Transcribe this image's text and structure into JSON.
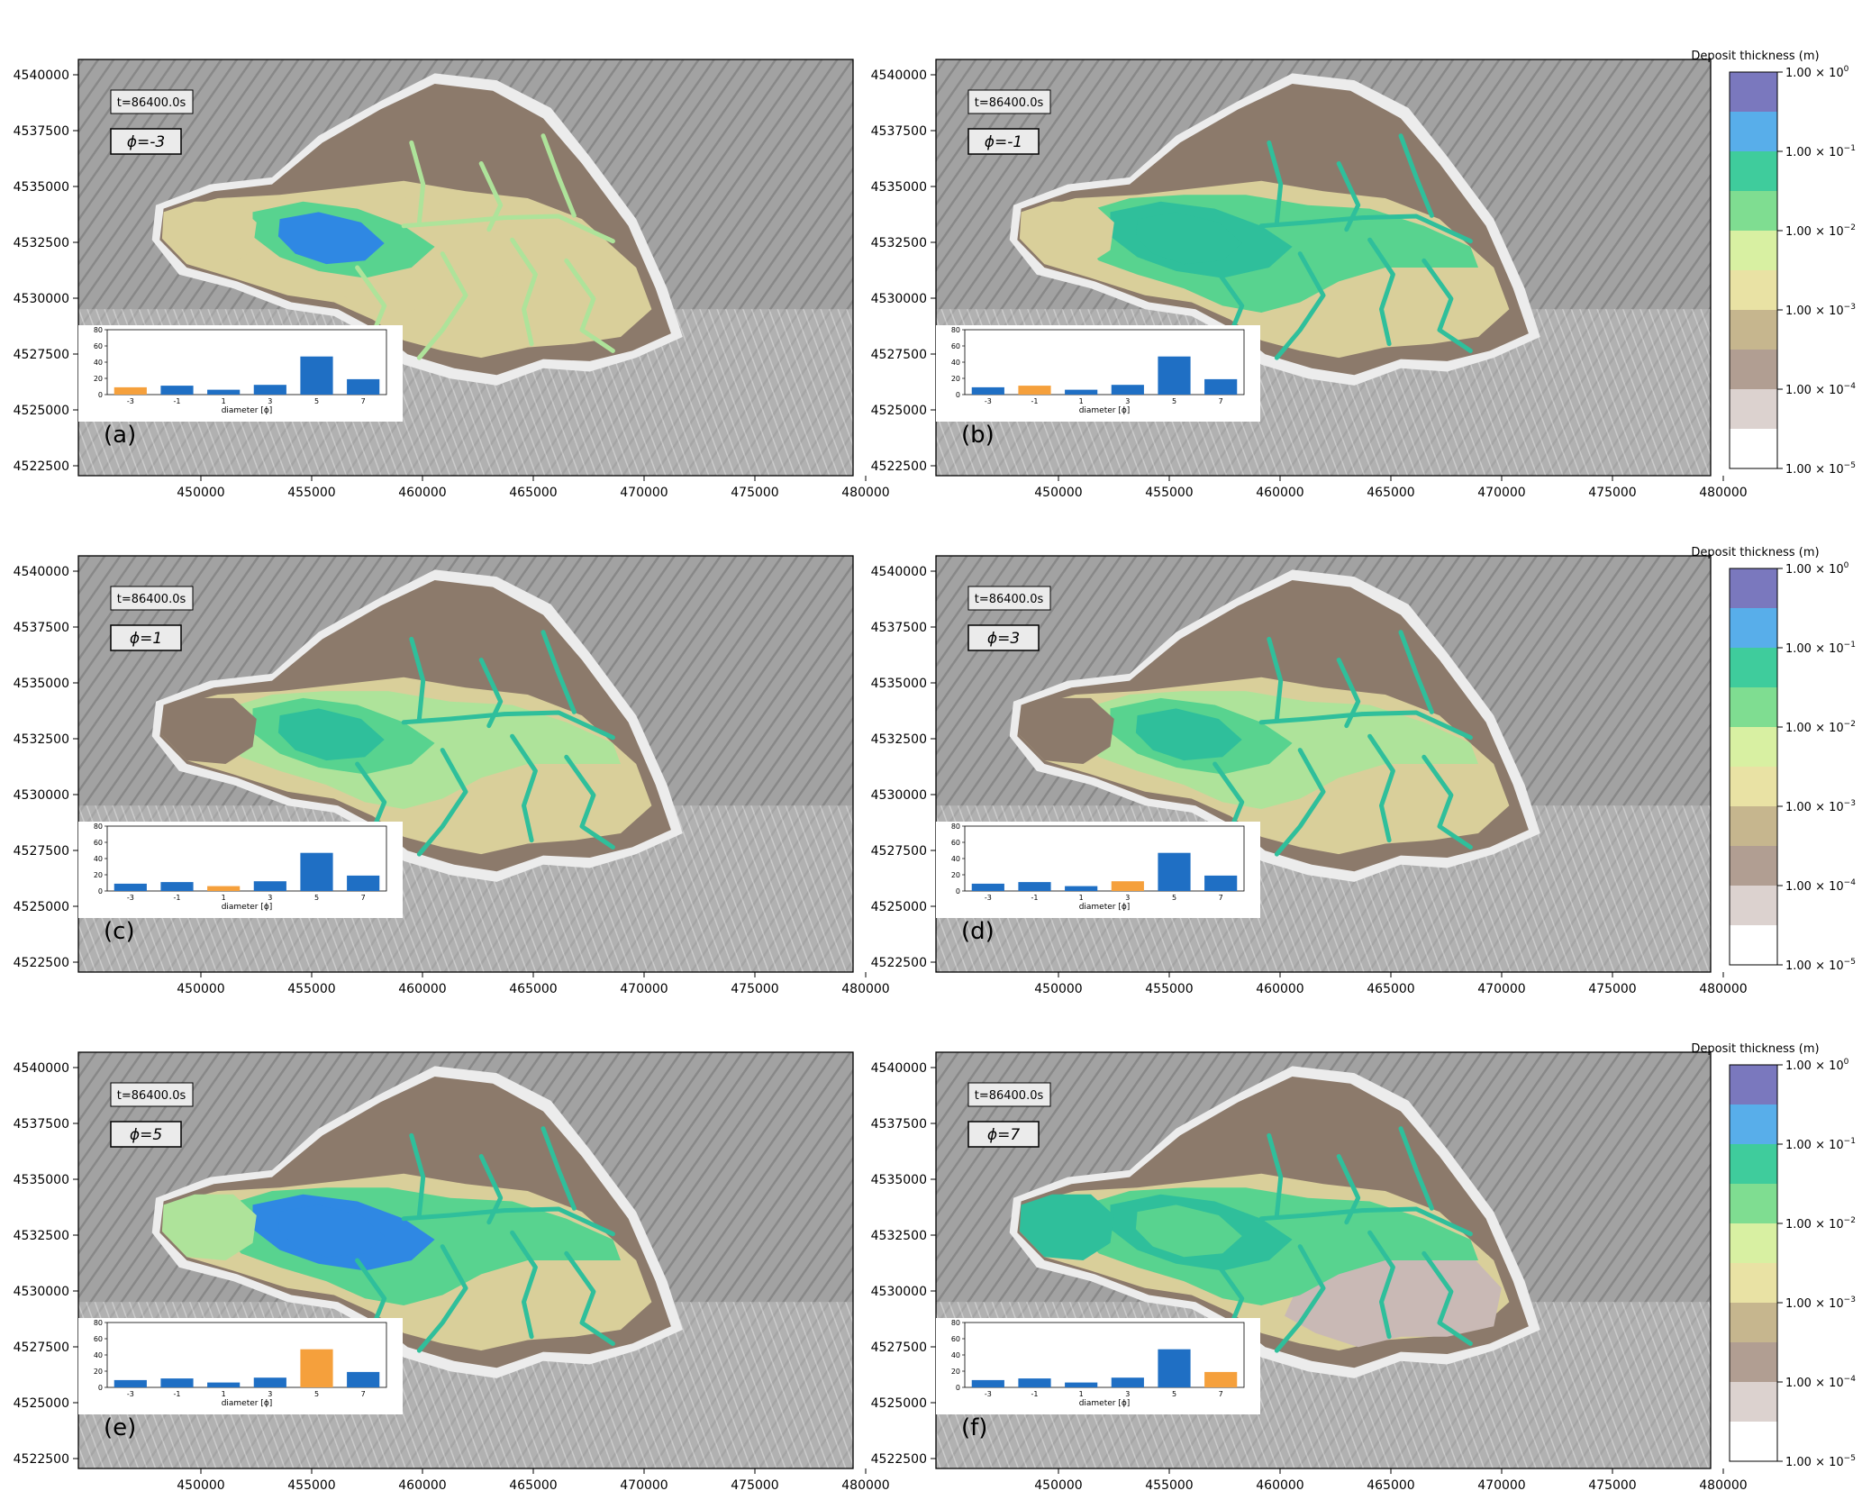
{
  "figure": {
    "y_ticks": [
      "4540000",
      "4537500",
      "4535000",
      "4532500",
      "4530000",
      "4527500",
      "4525000",
      "4522500"
    ],
    "x_ticks": [
      "450000",
      "455000",
      "460000",
      "465000",
      "470000",
      "475000",
      "480000"
    ],
    "colorbar": {
      "title": "Deposit thickness (m)",
      "ticks": [
        {
          "base": "1.00 × 10",
          "exp": "0"
        },
        {
          "base": "1.00 × 10",
          "exp": "−1"
        },
        {
          "base": "1.00 × 10",
          "exp": "−2"
        },
        {
          "base": "1.00 × 10",
          "exp": "−3"
        },
        {
          "base": "1.00 × 10",
          "exp": "−4"
        },
        {
          "base": "1.00 × 10",
          "exp": "−5"
        }
      ],
      "band_colors": [
        "#7a78be",
        "#58aeea",
        "#3fcc9c",
        "#7fdd91",
        "#d8f0a2",
        "#e9e2a4",
        "#c6b68e",
        "#b19e92",
        "#dcd2cf",
        "#ffffff"
      ]
    },
    "inset": {
      "y_ticks": [
        "80",
        "60",
        "40",
        "20",
        "0"
      ],
      "x_ticks": [
        "-3",
        "-1",
        "1",
        "3",
        "5",
        "7"
      ],
      "xlabel": "diameter [ϕ]",
      "values": [
        9,
        11,
        6,
        12,
        47,
        19
      ],
      "base_color": "#1f6fc4",
      "highlight_color": "#f5a03c"
    },
    "palette": {
      "terrain": "#9c9c9c",
      "halo": "#ececec",
      "brown": "#8c7a6b",
      "tan": "#d9cf9a",
      "lightgreen": "#aee39a",
      "green": "#58d38f",
      "teal": "#2fbf9b",
      "blue": "#2f88e3",
      "mauve": "#c9b9b5"
    },
    "panels": [
      {
        "id": "a",
        "label": "(a)",
        "time": "t=86400.0s",
        "phi": "ϕ=-3",
        "highlight": 0
      },
      {
        "id": "b",
        "label": "(b)",
        "time": "t=86400.0s",
        "phi": "ϕ=-1",
        "highlight": 1
      },
      {
        "id": "c",
        "label": "(c)",
        "time": "t=86400.0s",
        "phi": "ϕ=1",
        "highlight": 2
      },
      {
        "id": "d",
        "label": "(d)",
        "time": "t=86400.0s",
        "phi": "ϕ=3",
        "highlight": 3
      },
      {
        "id": "e",
        "label": "(e)",
        "time": "t=86400.0s",
        "phi": "ϕ=5",
        "highlight": 4
      },
      {
        "id": "f",
        "label": "(f)",
        "time": "t=86400.0s",
        "phi": "ϕ=7",
        "highlight": 5
      }
    ]
  }
}
